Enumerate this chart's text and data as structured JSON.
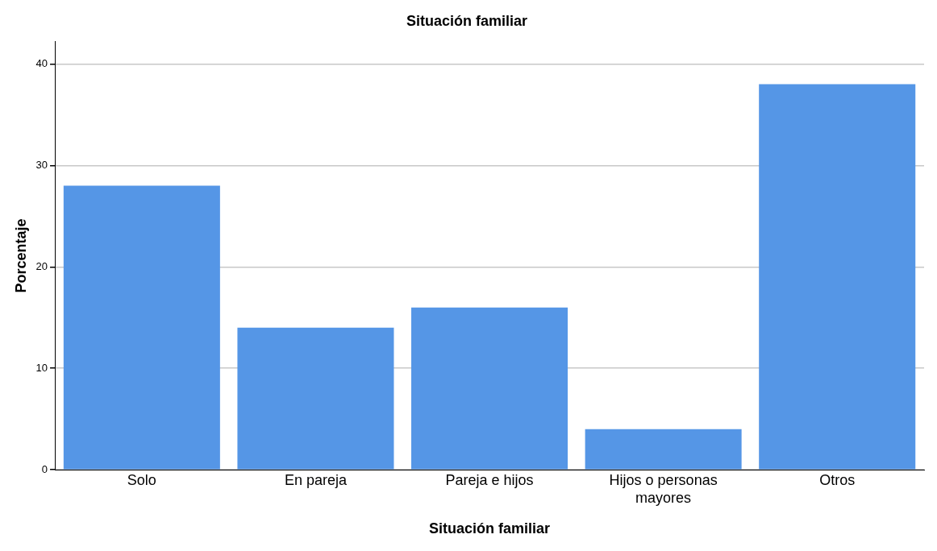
{
  "chart_data": {
    "type": "bar",
    "title": "Situación familiar",
    "xlabel": "Situación familiar",
    "ylabel": "Porcentaje",
    "categories": [
      "Solo",
      "En pareja",
      "Pareja e hijos",
      "Hijos o personas mayores",
      "Otros"
    ],
    "values": [
      28,
      14,
      16,
      4,
      38
    ],
    "color": "#5596e6",
    "ylim": [
      0,
      42.2
    ],
    "yticks": [
      0,
      10,
      20,
      30,
      40
    ],
    "grid": "y",
    "legend": false
  }
}
